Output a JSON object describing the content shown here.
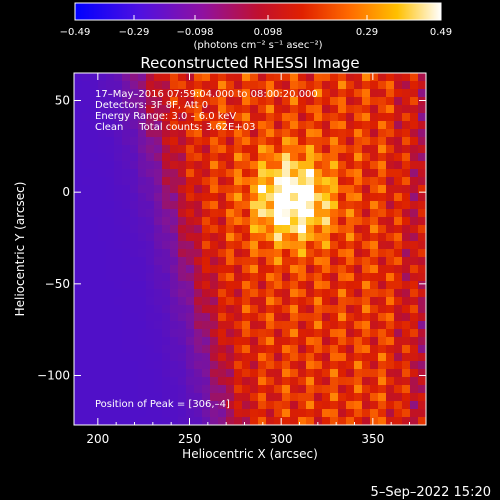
{
  "chart_data": {
    "type": "heatmap",
    "title": "Reconstructed RHESSI Image",
    "xlabel": "Heliocentric X (arcsec)",
    "ylabel": "Heliocentric Y (arcsec)",
    "xlim": [
      187,
      379
    ],
    "ylim": [
      -127,
      65
    ],
    "x_ticks": [
      200,
      250,
      300,
      350
    ],
    "y_ticks": [
      50,
      0,
      -50,
      -100
    ],
    "x_tick_labels": [
      "200",
      "250",
      "300",
      "350"
    ],
    "y_tick_labels": [
      "50",
      "0",
      "−50",
      "−100"
    ],
    "grid": false,
    "colorbar": {
      "orientation": "horizontal",
      "placement": "top",
      "range": [
        -0.49,
        0.49
      ],
      "tick_labels": [
        "−0.49",
        "−0.29",
        "−0.098",
        "0.098",
        "0.29",
        "0.49"
      ],
      "label": "(photons cm⁻² s⁻¹ asec⁻²)",
      "colormap": "blue-purple-red-orange-yellow-white"
    },
    "annotations": [
      "17–May–2016 07:59:04.000 to 08:00:20.000",
      "Detectors: 3F 8F, Att 0",
      "Energy Range: 3.0 – 6.0 keV",
      "Clean     Total counts: 3.62E+03"
    ],
    "peak_label": "Position of Peak = [306,–4]",
    "peak": [
      306,
      -4
    ]
  },
  "timestamp": "5–Sep–2022 15:20",
  "colors": {
    "background": "#000000",
    "text": "#ffffff"
  }
}
